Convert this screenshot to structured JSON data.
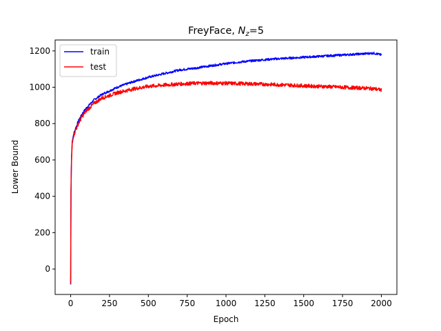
{
  "chart_data": {
    "type": "line",
    "title": {
      "prefix": "FreyFace, ",
      "var_main": "N",
      "var_sub": "z",
      "suffix": "=5"
    },
    "xlabel": "Epoch",
    "ylabel": "Lower Bound",
    "xlim": [
      -100,
      2100
    ],
    "ylim": [
      -140,
      1260
    ],
    "xticks": [
      0,
      250,
      500,
      750,
      1000,
      1250,
      1500,
      1750,
      2000
    ],
    "yticks": [
      0,
      200,
      400,
      600,
      800,
      1000,
      1200
    ],
    "legend_position": "top-left",
    "grid": false,
    "series": [
      {
        "name": "train",
        "color": "#0000ff",
        "noise": 6,
        "x": [
          0,
          2,
          5,
          10,
          20,
          30,
          50,
          75,
          100,
          150,
          200,
          250,
          300,
          400,
          500,
          600,
          700,
          800,
          900,
          1000,
          1100,
          1200,
          1300,
          1400,
          1500,
          1600,
          1700,
          1800,
          1900,
          1950,
          2000
        ],
        "values": [
          -85,
          420,
          600,
          700,
          745,
          770,
          815,
          855,
          885,
          930,
          960,
          980,
          1000,
          1030,
          1055,
          1075,
          1095,
          1105,
          1118,
          1130,
          1140,
          1148,
          1155,
          1160,
          1165,
          1170,
          1175,
          1180,
          1185,
          1188,
          1178
        ]
      },
      {
        "name": "test",
        "color": "#ff0000",
        "noise": 10,
        "x": [
          0,
          2,
          5,
          10,
          20,
          30,
          50,
          75,
          100,
          150,
          200,
          250,
          300,
          400,
          500,
          600,
          700,
          800,
          900,
          1000,
          1100,
          1200,
          1300,
          1400,
          1500,
          1600,
          1700,
          1800,
          1900,
          1950,
          2000
        ],
        "values": [
          -80,
          410,
          590,
          690,
          735,
          760,
          800,
          840,
          870,
          910,
          940,
          955,
          970,
          990,
          1005,
          1012,
          1018,
          1022,
          1023,
          1022,
          1020,
          1018,
          1015,
          1012,
          1008,
          1005,
          1002,
          998,
          995,
          992,
          985
        ]
      }
    ]
  }
}
